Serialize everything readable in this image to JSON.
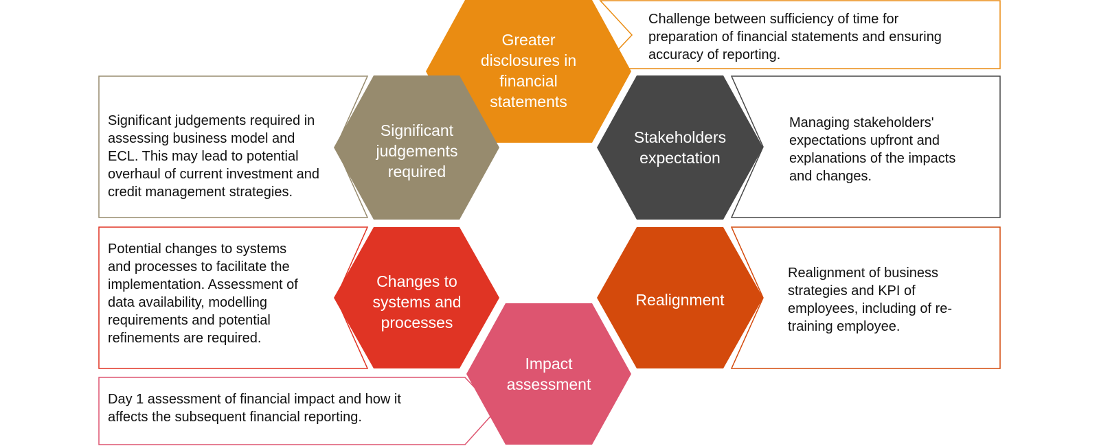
{
  "hexagons": [
    {
      "id": "greater-disclosures",
      "label": "Greater\ndisclosures in\nfinancial\nstatements",
      "color": "#EA8C12"
    },
    {
      "id": "significant-judgements",
      "label": "Significant\njudgements\nrequired",
      "color": "#978B6E"
    },
    {
      "id": "stakeholders-expectation",
      "label": "Stakeholders\nexpectation",
      "color": "#474747"
    },
    {
      "id": "changes-to-systems",
      "label": "Changes to\nsystems and\nprocesses",
      "color": "#E03424"
    },
    {
      "id": "realignment",
      "label": "Realignment",
      "color": "#D44A0C"
    },
    {
      "id": "impact-assessment",
      "label": "Impact\nassessment",
      "color": "#DD5570"
    }
  ],
  "callouts": [
    {
      "id": "greater-disclosures",
      "text": "Challenge between sufficiency of time for\npreparation of financial statements and ensuring\naccuracy of reporting.",
      "border": "#EA8C12"
    },
    {
      "id": "significant-judgements",
      "text": "Significant judgements required in\nassessing business model and\nECL. This may lead to potential\noverhaul of current investment and\ncredit management strategies.",
      "border": "#978B6E"
    },
    {
      "id": "stakeholders-expectation",
      "text": "Managing stakeholders'\nexpectations upfront and\nexplanations of the impacts\nand changes.",
      "border": "#474747"
    },
    {
      "id": "changes-to-systems",
      "text": "Potential changes to systems\nand processes to facilitate the\nimplementation. Assessment of\ndata availability, modelling\nrequirements and potential\nrefinements are required.",
      "border": "#E03424"
    },
    {
      "id": "realignment",
      "text": "Realignment of business\nstrategies and KPI of\nemployees, including of re-\ntraining employee.",
      "border": "#D44A0C"
    },
    {
      "id": "impact-assessment",
      "text": "Day 1 assessment of financial impact and how it\naffects the subsequent financial reporting.",
      "border": "#DD5570"
    }
  ]
}
